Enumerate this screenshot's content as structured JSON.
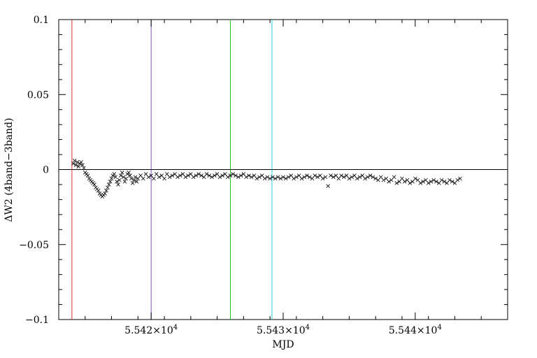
{
  "chart_data": {
    "type": "scatter",
    "title": "",
    "xlabel": "MJD",
    "ylabel": "ΔW2 (4band−3band)",
    "xlim": [
      55413,
      55447
    ],
    "ylim": [
      -0.1,
      0.1
    ],
    "xticks": [
      {
        "value": 55420,
        "mantissa": "5.542",
        "exponent": "4"
      },
      {
        "value": 55430,
        "mantissa": "5.543",
        "exponent": "4"
      },
      {
        "value": 55440,
        "mantissa": "5.544",
        "exponent": "4"
      }
    ],
    "yticks": [
      {
        "value": 0.1,
        "label": "0.1"
      },
      {
        "value": 0.05,
        "label": "0.05"
      },
      {
        "value": 0,
        "label": "0"
      },
      {
        "value": -0.05,
        "label": "-0.05"
      },
      {
        "value": -0.1,
        "label": "-0.1"
      }
    ],
    "marker": "x",
    "series": [
      {
        "points": [
          [
            55414.1,
            0.004
          ],
          [
            55414.2,
            0.006
          ],
          [
            55414.3,
            0.003
          ],
          [
            55414.4,
            0.005
          ],
          [
            55414.5,
            0.002
          ],
          [
            55414.6,
            0.004
          ],
          [
            55414.7,
            0.005
          ],
          [
            55414.8,
            0.003
          ],
          [
            55414.9,
            0.001
          ],
          [
            55415.0,
            -0.002
          ],
          [
            55415.1,
            -0.003
          ],
          [
            55415.2,
            -0.004
          ],
          [
            55415.3,
            -0.006
          ],
          [
            55415.4,
            -0.007
          ],
          [
            55415.5,
            -0.008
          ],
          [
            55415.6,
            -0.009
          ],
          [
            55415.7,
            -0.01
          ],
          [
            55415.8,
            -0.012
          ],
          [
            55415.9,
            -0.013
          ],
          [
            55416.0,
            -0.014
          ],
          [
            55416.1,
            -0.016
          ],
          [
            55416.2,
            -0.017
          ],
          [
            55416.3,
            -0.018
          ],
          [
            55416.4,
            -0.017
          ],
          [
            55416.5,
            -0.016
          ],
          [
            55416.6,
            -0.014
          ],
          [
            55416.7,
            -0.012
          ],
          [
            55416.8,
            -0.01
          ],
          [
            55416.9,
            -0.008
          ],
          [
            55417.0,
            -0.006
          ],
          [
            55417.1,
            -0.004
          ],
          [
            55417.2,
            -0.003
          ],
          [
            55417.3,
            -0.005
          ],
          [
            55417.4,
            -0.008
          ],
          [
            55417.5,
            -0.01
          ],
          [
            55417.6,
            -0.007
          ],
          [
            55417.7,
            -0.004
          ],
          [
            55417.8,
            -0.002
          ],
          [
            55417.9,
            -0.005
          ],
          [
            55418.0,
            -0.008
          ],
          [
            55418.1,
            -0.006
          ],
          [
            55418.2,
            -0.003
          ],
          [
            55418.3,
            -0.002
          ],
          [
            55418.4,
            -0.004
          ],
          [
            55418.5,
            -0.006
          ],
          [
            55418.6,
            -0.009
          ],
          [
            55418.7,
            -0.007
          ],
          [
            55418.8,
            -0.005
          ],
          [
            55418.9,
            -0.008
          ],
          [
            55419.0,
            -0.006
          ],
          [
            55419.2,
            -0.004
          ],
          [
            55419.4,
            -0.006
          ],
          [
            55419.6,
            -0.003
          ],
          [
            55419.8,
            -0.005
          ],
          [
            55420.0,
            -0.004
          ],
          [
            55420.2,
            -0.006
          ],
          [
            55420.4,
            -0.003
          ],
          [
            55420.6,
            -0.005
          ],
          [
            55420.8,
            -0.004
          ],
          [
            55421.0,
            -0.006
          ],
          [
            55421.2,
            -0.003
          ],
          [
            55421.4,
            -0.005
          ],
          [
            55421.6,
            -0.004
          ],
          [
            55421.8,
            -0.003
          ],
          [
            55422.0,
            -0.005
          ],
          [
            55422.2,
            -0.004
          ],
          [
            55422.4,
            -0.003
          ],
          [
            55422.6,
            -0.005
          ],
          [
            55422.8,
            -0.004
          ],
          [
            55423.0,
            -0.003
          ],
          [
            55423.2,
            -0.005
          ],
          [
            55423.4,
            -0.004
          ],
          [
            55423.6,
            -0.003
          ],
          [
            55423.8,
            -0.004
          ],
          [
            55424.0,
            -0.005
          ],
          [
            55424.2,
            -0.003
          ],
          [
            55424.4,
            -0.004
          ],
          [
            55424.6,
            -0.005
          ],
          [
            55424.8,
            -0.004
          ],
          [
            55425.0,
            -0.003
          ],
          [
            55425.2,
            -0.005
          ],
          [
            55425.4,
            -0.004
          ],
          [
            55425.6,
            -0.003
          ],
          [
            55425.8,
            -0.005
          ],
          [
            55426.0,
            -0.004
          ],
          [
            55426.2,
            -0.003
          ],
          [
            55426.4,
            -0.004
          ],
          [
            55426.6,
            -0.005
          ],
          [
            55426.8,
            -0.004
          ],
          [
            55427.0,
            -0.003
          ],
          [
            55427.2,
            -0.005
          ],
          [
            55427.4,
            -0.004
          ],
          [
            55427.6,
            -0.005
          ],
          [
            55427.8,
            -0.004
          ],
          [
            55428.0,
            -0.006
          ],
          [
            55428.2,
            -0.005
          ],
          [
            55428.4,
            -0.004
          ],
          [
            55428.6,
            -0.006
          ],
          [
            55428.8,
            -0.005
          ],
          [
            55429.0,
            -0.006
          ],
          [
            55429.2,
            -0.005
          ],
          [
            55429.4,
            -0.006
          ],
          [
            55429.6,
            -0.005
          ],
          [
            55429.8,
            -0.006
          ],
          [
            55430.0,
            -0.005
          ],
          [
            55430.2,
            -0.006
          ],
          [
            55430.4,
            -0.005
          ],
          [
            55430.6,
            -0.004
          ],
          [
            55430.8,
            -0.006
          ],
          [
            55431.0,
            -0.005
          ],
          [
            55431.2,
            -0.004
          ],
          [
            55431.4,
            -0.006
          ],
          [
            55431.6,
            -0.005
          ],
          [
            55431.8,
            -0.004
          ],
          [
            55432.0,
            -0.005
          ],
          [
            55432.2,
            -0.006
          ],
          [
            55432.4,
            -0.004
          ],
          [
            55432.6,
            -0.005
          ],
          [
            55432.8,
            -0.004
          ],
          [
            55433.0,
            -0.006
          ],
          [
            55433.2,
            -0.005
          ],
          [
            55433.4,
            -0.011
          ],
          [
            55433.6,
            -0.004
          ],
          [
            55433.8,
            -0.005
          ],
          [
            55434.0,
            -0.004
          ],
          [
            55434.2,
            -0.006
          ],
          [
            55434.4,
            -0.004
          ],
          [
            55434.6,
            -0.005
          ],
          [
            55434.8,
            -0.004
          ],
          [
            55435.0,
            -0.006
          ],
          [
            55435.2,
            -0.005
          ],
          [
            55435.4,
            -0.004
          ],
          [
            55435.6,
            -0.006
          ],
          [
            55435.8,
            -0.005
          ],
          [
            55436.0,
            -0.004
          ],
          [
            55436.2,
            -0.006
          ],
          [
            55436.4,
            -0.005
          ],
          [
            55436.6,
            -0.004
          ],
          [
            55436.8,
            -0.005
          ],
          [
            55437.0,
            -0.006
          ],
          [
            55437.2,
            -0.007
          ],
          [
            55437.4,
            -0.005
          ],
          [
            55437.6,
            -0.007
          ],
          [
            55437.8,
            -0.006
          ],
          [
            55438.0,
            -0.008
          ],
          [
            55438.2,
            -0.007
          ],
          [
            55438.4,
            -0.005
          ],
          [
            55438.6,
            -0.009
          ],
          [
            55438.8,
            -0.008
          ],
          [
            55439.0,
            -0.006
          ],
          [
            55439.2,
            -0.008
          ],
          [
            55439.4,
            -0.007
          ],
          [
            55439.6,
            -0.009
          ],
          [
            55439.8,
            -0.008
          ],
          [
            55440.0,
            -0.006
          ],
          [
            55440.2,
            -0.007
          ],
          [
            55440.4,
            -0.009
          ],
          [
            55440.6,
            -0.008
          ],
          [
            55440.8,
            -0.007
          ],
          [
            55441.0,
            -0.009
          ],
          [
            55441.2,
            -0.008
          ],
          [
            55441.4,
            -0.007
          ],
          [
            55441.6,
            -0.008
          ],
          [
            55441.8,
            -0.009
          ],
          [
            55442.0,
            -0.007
          ],
          [
            55442.2,
            -0.008
          ],
          [
            55442.4,
            -0.009
          ],
          [
            55442.6,
            -0.007
          ],
          [
            55442.8,
            -0.008
          ],
          [
            55443.0,
            -0.009
          ],
          [
            55443.2,
            -0.007
          ],
          [
            55443.4,
            -0.006
          ]
        ]
      }
    ],
    "hlines": [
      {
        "y": 0,
        "color": "#000000"
      }
    ],
    "vlines": [
      {
        "x": 55414.0,
        "color": "#e03030"
      },
      {
        "x": 55420.0,
        "color": "#8050c0"
      },
      {
        "x": 55426.0,
        "color": "#20c020"
      },
      {
        "x": 55429.15,
        "color": "#20d0e0"
      }
    ],
    "grid": false,
    "legend": "none"
  }
}
